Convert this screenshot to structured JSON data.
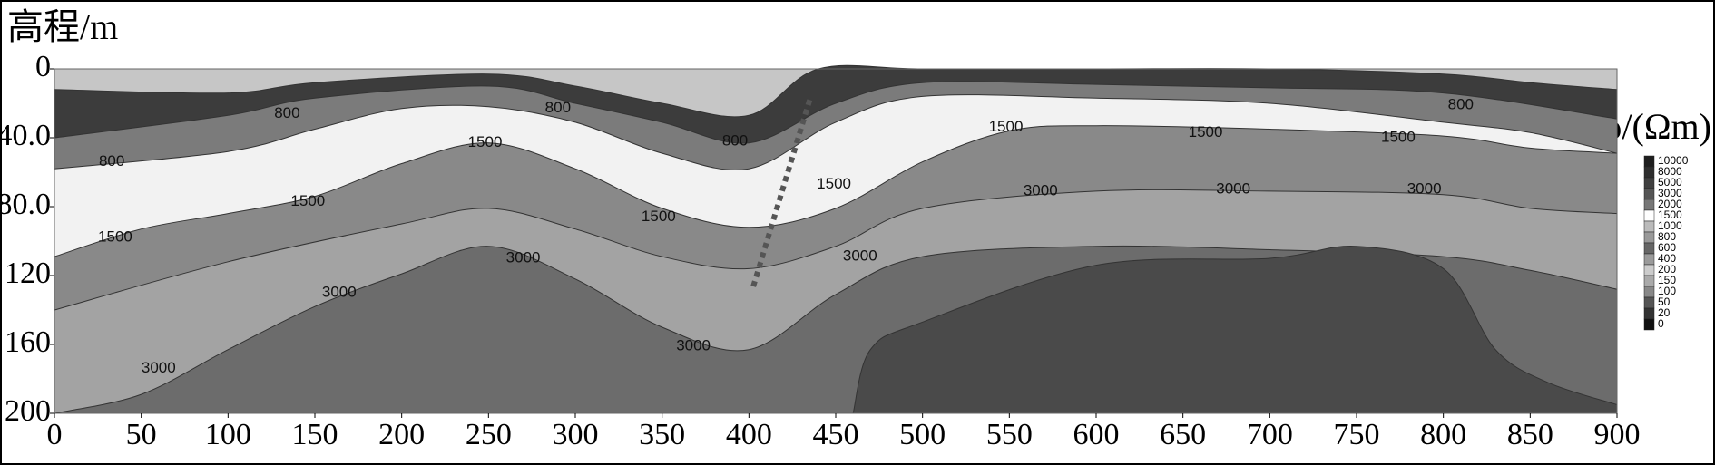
{
  "chart_data": {
    "type": "contour",
    "y_label": "高程/m",
    "colorbar_label": "ρ/(Ωm)",
    "xlim": [
      0,
      900
    ],
    "xticks": [
      0,
      50,
      100,
      150,
      200,
      250,
      300,
      350,
      400,
      450,
      500,
      550,
      600,
      650,
      700,
      750,
      800,
      850,
      900
    ],
    "ylim": [
      0,
      200
    ],
    "yticks": [
      0,
      {
        "value": 40,
        "label": "40.0"
      },
      {
        "value": 80,
        "label": "80.0"
      },
      120,
      160,
      200
    ],
    "y_inverted": true,
    "background_color": "#c6c6c6",
    "contours": [
      {
        "color": "#3c3c3c",
        "x": [
          0,
          100,
          150,
          250,
          300,
          350,
          400,
          440,
          500,
          600,
          700,
          800,
          850,
          900
        ],
        "y": [
          12,
          14,
          8,
          3,
          10,
          20,
          27,
          0,
          0,
          0,
          0,
          3,
          8,
          12
        ]
      },
      {
        "color": "#7b7b7b",
        "x": [
          0,
          100,
          150,
          250,
          300,
          350,
          400,
          450,
          500,
          600,
          700,
          800,
          900
        ],
        "y": [
          40,
          27,
          17,
          10,
          20,
          31,
          43,
          20,
          8,
          9,
          11,
          14,
          29
        ]
      },
      {
        "color": "#f2f2f2",
        "x": [
          0,
          100,
          150,
          200,
          250,
          300,
          350,
          400,
          450,
          500,
          600,
          700,
          800,
          850,
          900
        ],
        "y": [
          58,
          48,
          35,
          23,
          22,
          31,
          49,
          58,
          31,
          16,
          17,
          20,
          31,
          37,
          49
        ]
      },
      {
        "color": "#898989",
        "x": [
          0,
          50,
          100,
          150,
          200,
          250,
          300,
          350,
          400,
          450,
          500,
          550,
          600,
          700,
          800,
          850,
          900
        ],
        "y": [
          109,
          93,
          84,
          74,
          55,
          43,
          58,
          81,
          92,
          81,
          54,
          36,
          33,
          35,
          39,
          46,
          49
        ]
      },
      {
        "color": "#a3a3a3",
        "x": [
          0,
          100,
          200,
          250,
          300,
          350,
          400,
          450,
          500,
          600,
          700,
          800,
          850,
          900
        ],
        "y": [
          140,
          112,
          90,
          81,
          93,
          109,
          116,
          103,
          81,
          71,
          71,
          73,
          81,
          84
        ]
      },
      {
        "color": "#6c6c6c",
        "x": [
          0,
          50,
          100,
          150,
          200,
          250,
          300,
          350,
          400,
          450,
          500,
          600,
          700,
          800,
          850,
          900
        ],
        "y": [
          200,
          189,
          163,
          138,
          119,
          103,
          122,
          150,
          163,
          131,
          109,
          103,
          105,
          109,
          117,
          128
        ]
      },
      {
        "color": "#4a4a4a",
        "x": [
          460,
          470,
          500,
          600,
          700,
          750,
          800,
          830,
          860,
          900
        ],
        "y": [
          200,
          163,
          147,
          114,
          110,
          103,
          116,
          163,
          182,
          195
        ]
      }
    ],
    "contour_labels": [
      {
        "level": 800,
        "x": 33,
        "y": 54
      },
      {
        "level": 800,
        "x": 134,
        "y": 26
      },
      {
        "level": 800,
        "x": 290,
        "y": 23
      },
      {
        "level": 800,
        "x": 392,
        "y": 42
      },
      {
        "level": 800,
        "x": 810,
        "y": 21
      },
      {
        "level": 1500,
        "x": 35,
        "y": 98
      },
      {
        "level": 1500,
        "x": 146,
        "y": 77
      },
      {
        "level": 1500,
        "x": 248,
        "y": 43
      },
      {
        "level": 1500,
        "x": 348,
        "y": 86
      },
      {
        "level": 1500,
        "x": 449,
        "y": 67
      },
      {
        "level": 1500,
        "x": 548,
        "y": 34
      },
      {
        "level": 1500,
        "x": 663,
        "y": 37
      },
      {
        "level": 1500,
        "x": 774,
        "y": 40
      },
      {
        "level": 3000,
        "x": 60,
        "y": 174
      },
      {
        "level": 3000,
        "x": 164,
        "y": 130
      },
      {
        "level": 3000,
        "x": 270,
        "y": 110
      },
      {
        "level": 3000,
        "x": 368,
        "y": 161
      },
      {
        "level": 3000,
        "x": 464,
        "y": 109
      },
      {
        "level": 3000,
        "x": 568,
        "y": 71
      },
      {
        "level": 3000,
        "x": 679,
        "y": 70
      },
      {
        "level": 3000,
        "x": 789,
        "y": 70
      }
    ],
    "fault": {
      "x": [
        435,
        402
      ],
      "y": [
        18,
        128
      ],
      "color": "#555555"
    },
    "colorbar": {
      "levels": [
        10000,
        8000,
        5000,
        3000,
        2000,
        1500,
        1000,
        800,
        600,
        400,
        200,
        150,
        100,
        50,
        20,
        0
      ],
      "colors": [
        "#1e1e1e",
        "#2e2e2e",
        "#404040",
        "#555555",
        "#777777",
        "#ffffff",
        "#bbbbbb",
        "#999999",
        "#666666",
        "#9a9a9a",
        "#cccccc",
        "#aaaaaa",
        "#888888",
        "#555555",
        "#333333",
        "#111111"
      ]
    }
  }
}
